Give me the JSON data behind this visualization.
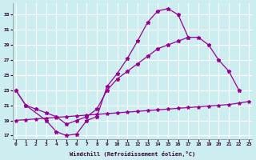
{
  "bg_color": "#cceef0",
  "line_color": "#990099",
  "grid_color": "#ffffff",
  "xlabel": "Windchill (Refroidissement éolien,°C)",
  "xlim": [
    -0.3,
    23.3
  ],
  "ylim": [
    16.5,
    34.5
  ],
  "yticks": [
    17,
    19,
    21,
    23,
    25,
    27,
    29,
    31,
    33
  ],
  "xticks": [
    0,
    1,
    2,
    3,
    4,
    5,
    6,
    7,
    8,
    9,
    10,
    11,
    12,
    13,
    14,
    15,
    16,
    17,
    18,
    19,
    20,
    21,
    22,
    23
  ],
  "curve1_x": [
    0,
    1,
    3,
    4,
    5,
    6,
    7,
    8,
    9,
    10,
    11,
    12,
    13,
    14,
    15,
    16,
    17
  ],
  "curve1_y": [
    23,
    21,
    19,
    17.5,
    17.0,
    17.2,
    19.0,
    19.5,
    23.5,
    25.2,
    27.2,
    29.5,
    32.0,
    33.5,
    33.8,
    33.0,
    30.0
  ],
  "curve2_x": [
    0,
    1,
    2,
    3,
    4,
    5,
    6,
    7,
    8,
    9,
    10,
    11,
    12,
    13,
    14,
    15,
    16,
    17,
    18,
    19,
    20,
    21,
    22
  ],
  "curve2_y": [
    23,
    21,
    20.5,
    20.0,
    19.5,
    18.5,
    19.0,
    19.5,
    20.5,
    23.0,
    24.5,
    25.5,
    26.5,
    27.5,
    28.5,
    29.0,
    29.5,
    30.0,
    30.0,
    29.0,
    27.0,
    25.5,
    23.0
  ],
  "curve3_x": [
    0,
    1,
    2,
    3,
    4,
    5,
    6,
    7,
    8,
    9,
    10,
    11,
    12,
    13,
    14,
    15,
    16,
    17,
    18,
    19,
    20,
    21,
    22,
    23
  ],
  "curve3_y": [
    19.0,
    19.1,
    19.2,
    19.3,
    19.4,
    19.5,
    19.6,
    19.7,
    19.8,
    19.9,
    20.0,
    20.1,
    20.2,
    20.3,
    20.4,
    20.5,
    20.6,
    20.7,
    20.8,
    20.9,
    21.0,
    21.1,
    21.3,
    21.5
  ]
}
